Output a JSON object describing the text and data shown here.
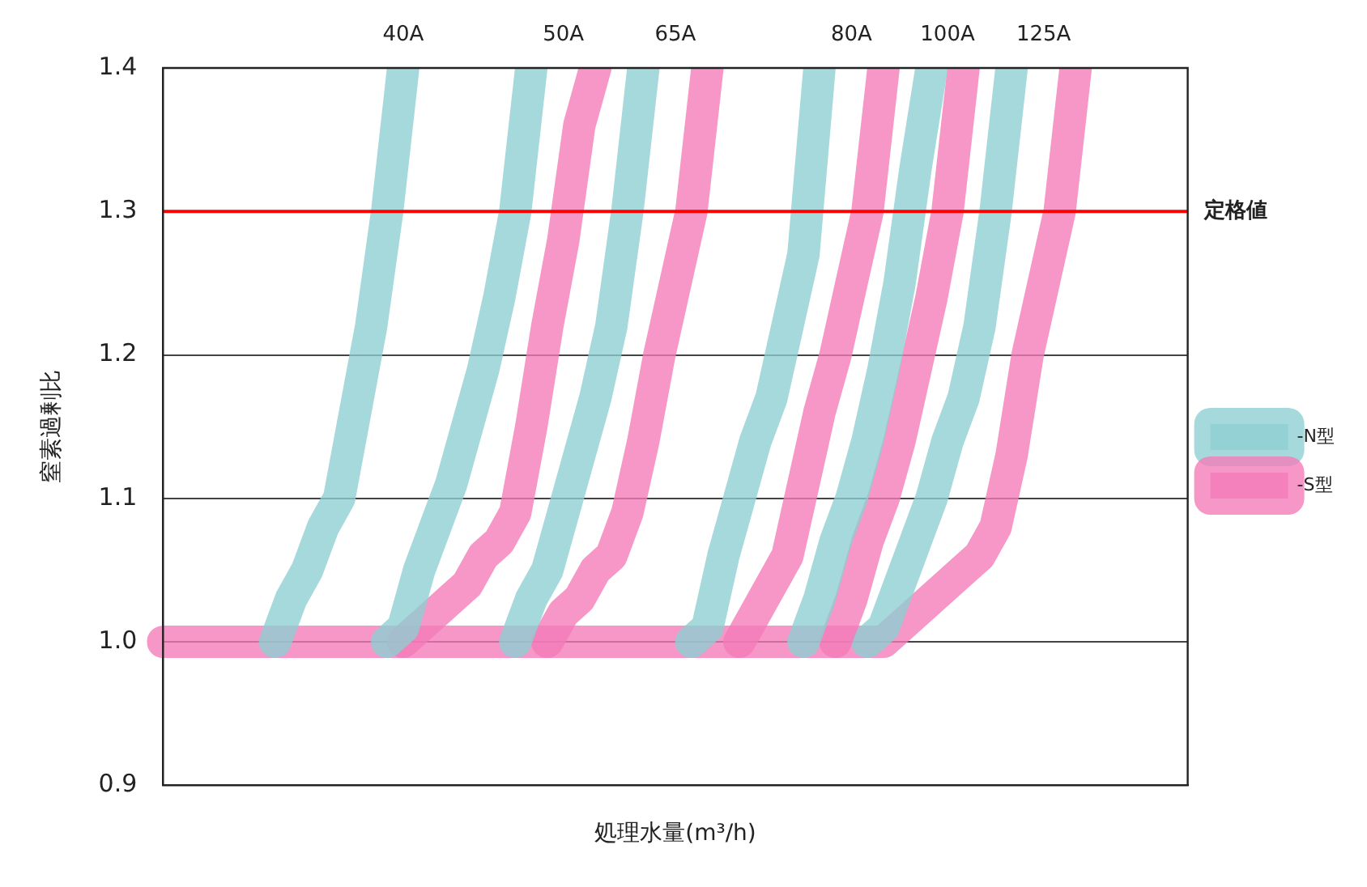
{
  "chart_data": {
    "type": "line",
    "xlabel": "処理水量(m³/h)",
    "ylabel": "窒素過剰比",
    "categories": [
      null,
      null,
      null,
      null,
      null,
      null,
      null,
      null,
      null,
      null,
      null,
      null,
      null,
      null,
      null,
      null,
      null,
      null,
      null,
      null,
      null,
      null,
      null,
      null,
      null,
      null,
      null,
      null,
      null,
      null,
      null,
      null,
      null,
      null,
      null,
      null,
      null,
      null,
      null,
      null,
      null,
      null,
      null,
      null,
      null,
      null,
      null,
      null,
      null,
      null,
      null,
      null,
      null,
      null,
      null,
      null,
      null,
      null,
      null,
      null,
      null,
      null,
      null,
      null,
      null
    ],
    "ylim": [
      0.9,
      1.4
    ],
    "yticks": [
      {
        "value": 0.9,
        "label": "0.9"
      },
      {
        "value": 1,
        "label": "1.0"
      },
      {
        "value": 1.1,
        "label": "1.1"
      },
      {
        "value": 1.2,
        "label": "1.2"
      },
      {
        "value": 1.3,
        "label": "1.3"
      },
      {
        "value": 1.4,
        "label": "1.4"
      }
    ],
    "grid": "y",
    "legend": "right",
    "tick_labels": "y",
    "marker": "none",
    "line_style": "solid",
    "ref_lines": [
      {
        "axis": "y",
        "value": 1.3,
        "label": "定格値",
        "color": "#ff0000"
      }
    ],
    "annotations": [
      "40A",
      "50A",
      "65A",
      "80A",
      "100A",
      "125A"
    ],
    "series": [
      {
        "name": "-N型",
        "color": "#8ecfd2",
        "values": [
          null,
          null,
          null,
          null,
          null,
          null,
          null,
          1,
          1.03,
          1.05,
          1.08,
          1.1,
          1.16,
          1.22,
          1.3,
          1.4,
          null,
          null,
          null,
          null,
          null,
          null,
          null,
          null,
          null,
          null,
          null,
          null,
          null,
          null,
          null,
          null,
          null,
          null,
          null,
          null,
          null,
          null,
          null,
          null,
          null,
          null,
          null,
          null,
          null,
          null,
          null,
          null,
          null,
          null,
          null,
          null,
          null,
          null,
          null,
          null,
          null,
          null,
          null,
          null,
          null,
          null,
          null,
          null,
          null
        ]
      },
      {
        "color": "#8ecfd2",
        "values": [
          null,
          null,
          null,
          null,
          null,
          null,
          null,
          null,
          null,
          null,
          null,
          null,
          null,
          null,
          1,
          1.01,
          1.05,
          1.08,
          1.11,
          1.15,
          1.19,
          1.24,
          1.3,
          1.4,
          null,
          null,
          null,
          null,
          null,
          null,
          null,
          null,
          null,
          null,
          null,
          null,
          null,
          null,
          null,
          null,
          null,
          null,
          null,
          null,
          null,
          null,
          null,
          null,
          null,
          null,
          null,
          null,
          null,
          null,
          null,
          null,
          null,
          null,
          null,
          null,
          null,
          null,
          null,
          null,
          null
        ]
      },
      {
        "name": "-S型",
        "color": "#f37bb8",
        "values": [
          null,
          null,
          null,
          null,
          null,
          null,
          null,
          null,
          null,
          null,
          null,
          null,
          null,
          null,
          null,
          1,
          1.01,
          1.02,
          1.03,
          1.04,
          1.06,
          1.07,
          1.09,
          1.15,
          1.22,
          1.28,
          1.36,
          1.4,
          null,
          null,
          null,
          null,
          null,
          null,
          null,
          null,
          null,
          null,
          null,
          null,
          null,
          null,
          null,
          null,
          null,
          null,
          null,
          null,
          null,
          null,
          null,
          null,
          null,
          null,
          null,
          null,
          null,
          null,
          null,
          null,
          null,
          null,
          null,
          null,
          null
        ]
      },
      {
        "color": "#8ecfd2",
        "values": [
          null,
          null,
          null,
          null,
          null,
          null,
          null,
          null,
          null,
          null,
          null,
          null,
          null,
          null,
          null,
          null,
          null,
          null,
          null,
          null,
          null,
          null,
          1,
          1.03,
          1.05,
          1.09,
          1.13,
          1.17,
          1.22,
          1.3,
          1.4,
          null,
          null,
          null,
          null,
          null,
          null,
          null,
          null,
          null,
          null,
          null,
          null,
          null,
          null,
          null,
          null,
          null,
          null,
          null,
          null,
          null,
          null,
          null,
          null,
          null,
          null,
          null,
          null,
          null,
          null,
          null,
          null,
          null,
          null
        ]
      },
      {
        "color": "#f37bb8",
        "values": [
          null,
          null,
          null,
          null,
          null,
          null,
          null,
          null,
          null,
          null,
          null,
          null,
          null,
          null,
          null,
          null,
          null,
          null,
          null,
          null,
          null,
          null,
          null,
          null,
          1,
          1.02,
          1.03,
          1.05,
          1.06,
          1.09,
          1.14,
          1.2,
          1.25,
          1.3,
          1.4,
          null,
          null,
          null,
          null,
          null,
          null,
          null,
          null,
          null,
          null,
          null,
          null,
          null,
          null,
          null,
          null,
          null,
          null,
          null,
          null,
          null,
          null,
          null,
          null,
          null,
          null,
          null,
          null,
          null,
          null
        ]
      },
      {
        "color": "#8ecfd2",
        "values": [
          null,
          null,
          null,
          null,
          null,
          null,
          null,
          null,
          null,
          null,
          null,
          null,
          null,
          null,
          null,
          null,
          null,
          null,
          null,
          null,
          null,
          null,
          null,
          null,
          null,
          null,
          null,
          null,
          null,
          null,
          null,
          null,
          null,
          1,
          1.01,
          1.06,
          1.1,
          1.14,
          1.17,
          1.22,
          1.27,
          1.4,
          null,
          null,
          null,
          null,
          null,
          null,
          null,
          null,
          null,
          null,
          null,
          null,
          null,
          null,
          null,
          null,
          null,
          null,
          null,
          null,
          null,
          null,
          null
        ]
      },
      {
        "color": "#f37bb8",
        "values": [
          null,
          null,
          null,
          null,
          null,
          null,
          null,
          null,
          null,
          null,
          null,
          null,
          null,
          null,
          null,
          null,
          null,
          null,
          null,
          null,
          null,
          null,
          null,
          null,
          null,
          null,
          null,
          null,
          null,
          null,
          null,
          null,
          null,
          null,
          null,
          null,
          1,
          1.02,
          1.04,
          1.06,
          1.11,
          1.16,
          1.2,
          1.25,
          1.3,
          1.4,
          null,
          null,
          null,
          null,
          null,
          null,
          null,
          null,
          null,
          null,
          null,
          null,
          null,
          null,
          null,
          null,
          null,
          null,
          null
        ]
      },
      {
        "color": "#8ecfd2",
        "values": [
          null,
          null,
          null,
          null,
          null,
          null,
          null,
          null,
          null,
          null,
          null,
          null,
          null,
          null,
          null,
          null,
          null,
          null,
          null,
          null,
          null,
          null,
          null,
          null,
          null,
          null,
          null,
          null,
          null,
          null,
          null,
          null,
          null,
          null,
          null,
          null,
          null,
          null,
          null,
          null,
          1,
          1.03,
          1.07,
          1.1,
          1.14,
          1.19,
          1.25,
          1.33,
          1.4,
          null,
          null,
          null,
          null,
          null,
          null,
          null,
          null,
          null,
          null,
          null,
          null,
          null,
          null,
          null,
          null
        ]
      },
      {
        "color": "#f37bb8",
        "values": [
          null,
          null,
          null,
          null,
          null,
          null,
          null,
          null,
          null,
          null,
          null,
          null,
          null,
          null,
          null,
          null,
          null,
          null,
          null,
          null,
          null,
          null,
          null,
          null,
          null,
          null,
          null,
          null,
          null,
          null,
          null,
          null,
          null,
          null,
          null,
          null,
          null,
          null,
          null,
          null,
          null,
          null,
          1,
          1.03,
          1.07,
          1.1,
          1.14,
          1.19,
          1.24,
          1.3,
          1.4,
          null,
          null,
          null,
          null,
          null,
          null,
          null,
          null,
          null,
          null,
          null,
          null,
          null,
          null
        ]
      },
      {
        "color": "#8ecfd2",
        "values": [
          null,
          null,
          null,
          null,
          null,
          null,
          null,
          null,
          null,
          null,
          null,
          null,
          null,
          null,
          null,
          null,
          null,
          null,
          null,
          null,
          null,
          null,
          null,
          null,
          null,
          null,
          null,
          null,
          null,
          null,
          null,
          null,
          null,
          null,
          null,
          null,
          null,
          null,
          null,
          null,
          null,
          null,
          null,
          null,
          1,
          1.01,
          1.04,
          1.07,
          1.1,
          1.14,
          1.17,
          1.22,
          1.3,
          1.4,
          null,
          null,
          null,
          null,
          null,
          null,
          null,
          null,
          null,
          null,
          null
        ]
      },
      {
        "color": "#f37bb8",
        "values": [
          1,
          1,
          1,
          1,
          1,
          1,
          1,
          1,
          1,
          1,
          1,
          1,
          1,
          1,
          1,
          1,
          1,
          1,
          1,
          1,
          1,
          1,
          1,
          1,
          1,
          1,
          1,
          1,
          1,
          1,
          1,
          1,
          1,
          1,
          1,
          1,
          1,
          1,
          1,
          1,
          1,
          1,
          1,
          1,
          1,
          1,
          1.01,
          1.02,
          1.03,
          1.04,
          1.05,
          1.06,
          1.08,
          1.13,
          1.2,
          1.25,
          1.3,
          1.4,
          null,
          null,
          null,
          null,
          null,
          null,
          null
        ]
      }
    ]
  }
}
